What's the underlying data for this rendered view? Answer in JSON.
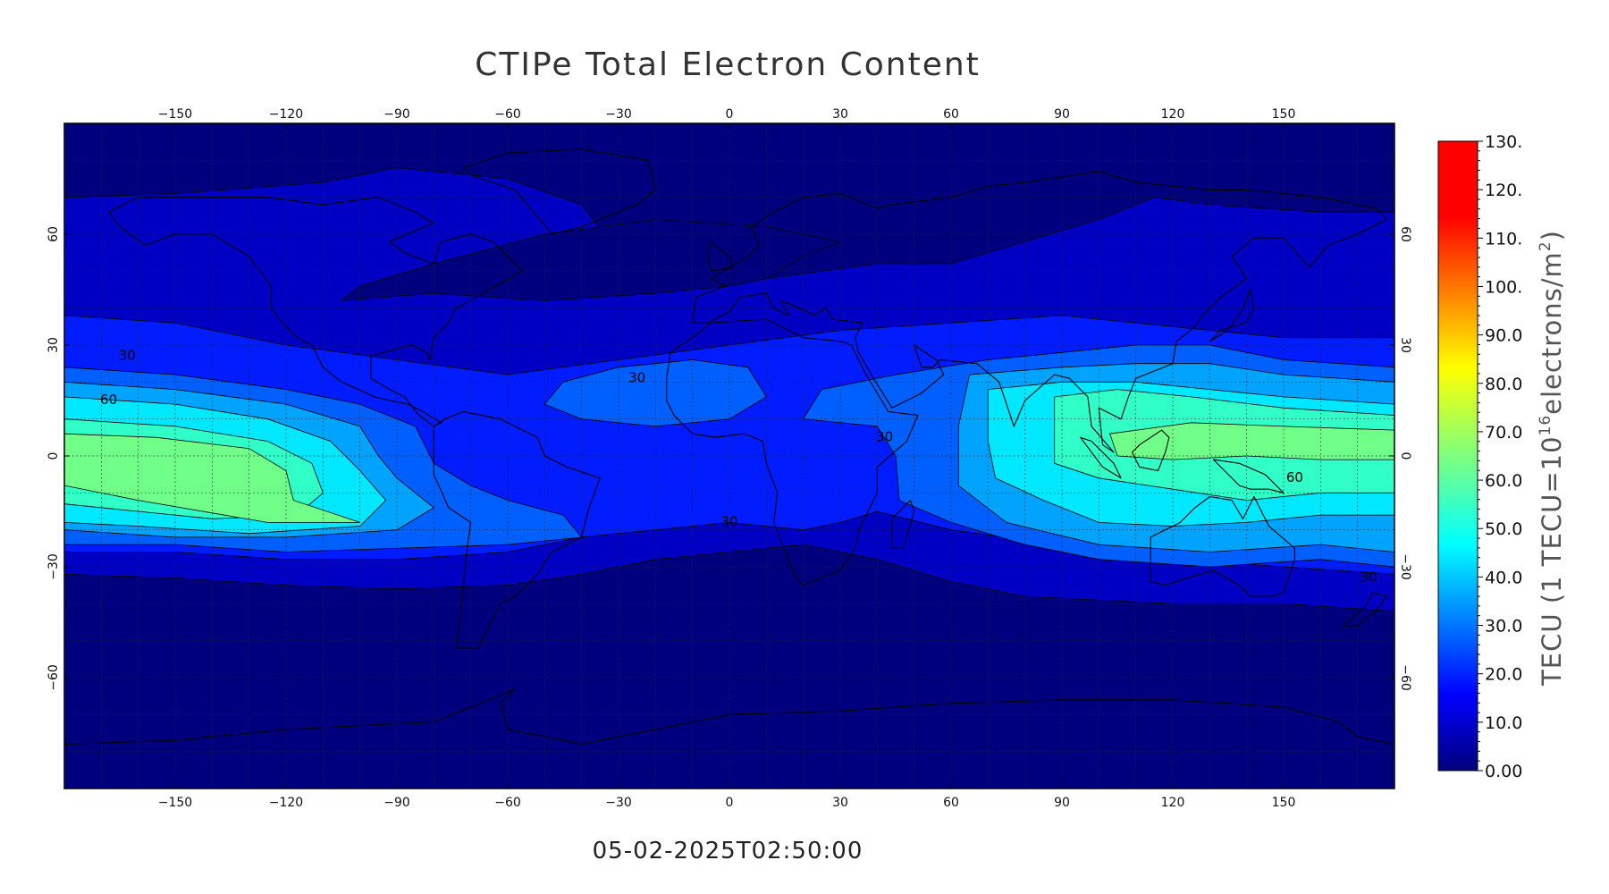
{
  "title": "CTIPe Total Electron Content",
  "timestamp": "05-02-2025T02:50:00",
  "map": {
    "projection": "cylindrical equidistant",
    "lon_range": [
      -180,
      180
    ],
    "lat_range": [
      -90,
      90
    ],
    "lon_ticks": [
      -150,
      -120,
      -90,
      -60,
      -30,
      0,
      30,
      60,
      90,
      120,
      150
    ],
    "lat_ticks": [
      60,
      30,
      0,
      -30,
      -60
    ],
    "grid": "dotted, every 10 degrees",
    "coastlines": true,
    "contour_labels": [
      {
        "text": "30",
        "lon": -163,
        "lat": 26
      },
      {
        "text": "60",
        "lon": -168,
        "lat": 14
      },
      {
        "text": "30",
        "lon": -25,
        "lat": 20
      },
      {
        "text": "30",
        "lon": 0,
        "lat": -19
      },
      {
        "text": "30",
        "lon": 42,
        "lat": 4
      },
      {
        "text": "60",
        "lon": 153,
        "lat": -7
      },
      {
        "text": "30",
        "lon": 173,
        "lat": -34
      }
    ]
  },
  "colorbar": {
    "label": "TECU (1 TECU=10",
    "label_sup": "16",
    "label_mid": "electrons/m",
    "label_sup2": "2",
    "label_end": ")",
    "min": 0,
    "max": 130,
    "ticks": [
      "130.",
      "120.",
      "110.",
      "100.",
      "90.0",
      "80.0",
      "70.0",
      "60.0",
      "50.0",
      "40.0",
      "30.0",
      "20.0",
      "10.0",
      "0.00"
    ]
  },
  "tec_levels": [
    {
      "level": 0,
      "color": "#00007f"
    },
    {
      "level": 10,
      "color": "#0000c4"
    },
    {
      "level": 20,
      "color": "#001cff"
    },
    {
      "level": 30,
      "color": "#0060ff"
    },
    {
      "level": 40,
      "color": "#00a4ff"
    },
    {
      "level": 50,
      "color": "#00e8ff"
    },
    {
      "level": 60,
      "color": "#30ffc8"
    },
    {
      "level": 70,
      "color": "#70ff88"
    }
  ]
}
